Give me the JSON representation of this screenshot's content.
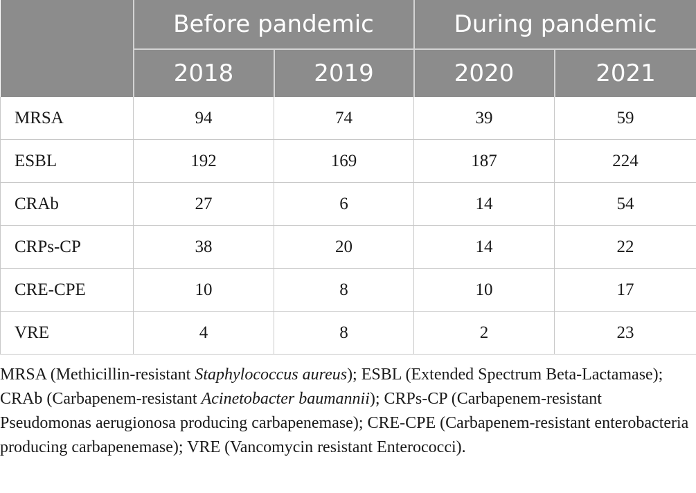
{
  "header": {
    "groups": [
      "Before pandemic",
      "During pandemic"
    ],
    "years": [
      "2018",
      "2019",
      "2020",
      "2021"
    ]
  },
  "rows": [
    {
      "label": "MRSA",
      "values": [
        "94",
        "74",
        "39",
        "59"
      ]
    },
    {
      "label": "ESBL",
      "values": [
        "192",
        "169",
        "187",
        "224"
      ]
    },
    {
      "label": "CRAb",
      "values": [
        "27",
        "6",
        "14",
        "54"
      ]
    },
    {
      "label": "CRPs-CP",
      "values": [
        "38",
        "20",
        "14",
        "22"
      ]
    },
    {
      "label": "CRE-CPE",
      "values": [
        "10",
        "8",
        "10",
        "17"
      ]
    },
    {
      "label": "VRE",
      "values": [
        "4",
        "8",
        "2",
        "23"
      ]
    }
  ],
  "footnote": {
    "p1": "MRSA (Methicillin-resistant ",
    "i1": "Staphylococcus aureus",
    "p2": "); ESBL (Extended Spectrum Beta-Lactamase); CRAb (Carbapenem-resistant ",
    "i2": "Acinetobacter baumannii",
    "p3": "); CRPs-CP (Carbapenem-resistant Pseudomonas aerugionosa producing carbapenemase); CRE-CPE (Carbapenem-resistant enterobacteria producing carbapenemase); VRE (Vancomycin resistant Enterococci)."
  }
}
